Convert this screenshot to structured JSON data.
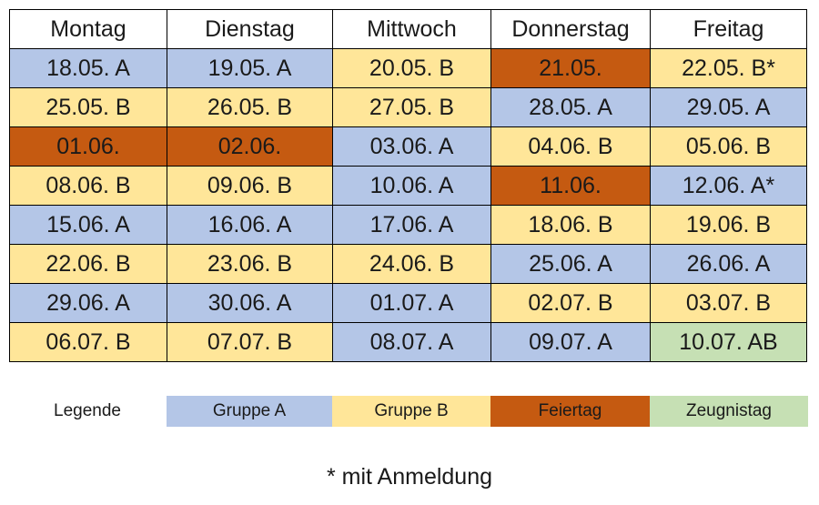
{
  "schedule": {
    "headers": [
      "Montag",
      "Dienstag",
      "Mittwoch",
      "Donnerstag",
      "Freitag"
    ],
    "rows": [
      [
        {
          "text": "18.05. A",
          "type": "A"
        },
        {
          "text": "19.05. A",
          "type": "A"
        },
        {
          "text": "20.05. B",
          "type": "B"
        },
        {
          "text": "21.05.",
          "type": "F"
        },
        {
          "text": "22.05. B*",
          "type": "B"
        }
      ],
      [
        {
          "text": "25.05. B",
          "type": "B"
        },
        {
          "text": "26.05. B",
          "type": "B"
        },
        {
          "text": "27.05. B",
          "type": "B"
        },
        {
          "text": "28.05. A",
          "type": "A"
        },
        {
          "text": "29.05. A",
          "type": "A"
        }
      ],
      [
        {
          "text": "01.06.",
          "type": "F"
        },
        {
          "text": "02.06.",
          "type": "F"
        },
        {
          "text": "03.06. A",
          "type": "A"
        },
        {
          "text": "04.06. B",
          "type": "B"
        },
        {
          "text": "05.06. B",
          "type": "B"
        }
      ],
      [
        {
          "text": "08.06. B",
          "type": "B"
        },
        {
          "text": "09.06. B",
          "type": "B"
        },
        {
          "text": "10.06. A",
          "type": "A"
        },
        {
          "text": "11.06.",
          "type": "F"
        },
        {
          "text": "12.06. A*",
          "type": "A"
        }
      ],
      [
        {
          "text": "15.06. A",
          "type": "A"
        },
        {
          "text": "16.06. A",
          "type": "A"
        },
        {
          "text": "17.06. A",
          "type": "A"
        },
        {
          "text": "18.06. B",
          "type": "B"
        },
        {
          "text": "19.06. B",
          "type": "B"
        }
      ],
      [
        {
          "text": "22.06. B",
          "type": "B"
        },
        {
          "text": "23.06. B",
          "type": "B"
        },
        {
          "text": "24.06. B",
          "type": "B"
        },
        {
          "text": "25.06. A",
          "type": "A"
        },
        {
          "text": "26.06. A",
          "type": "A"
        }
      ],
      [
        {
          "text": "29.06. A",
          "type": "A"
        },
        {
          "text": "30.06. A",
          "type": "A"
        },
        {
          "text": "01.07. A",
          "type": "A"
        },
        {
          "text": "02.07. B",
          "type": "B"
        },
        {
          "text": "03.07. B",
          "type": "B"
        }
      ],
      [
        {
          "text": "06.07. B",
          "type": "B"
        },
        {
          "text": "07.07. B",
          "type": "B"
        },
        {
          "text": "08.07. A",
          "type": "A"
        },
        {
          "text": "09.07. A",
          "type": "A"
        },
        {
          "text": "10.07. AB",
          "type": "Z"
        }
      ]
    ]
  },
  "legend": {
    "title": "Legende",
    "items": [
      {
        "key": "A",
        "label": "Gruppe A",
        "color": "#b4c6e7"
      },
      {
        "key": "B",
        "label": "Gruppe B",
        "color": "#ffe699"
      },
      {
        "key": "F",
        "label": "Feiertag",
        "color": "#c55a11"
      },
      {
        "key": "Z",
        "label": "Zeugnistag",
        "color": "#c6e0b4"
      }
    ]
  },
  "footnote": "* mit Anmeldung"
}
